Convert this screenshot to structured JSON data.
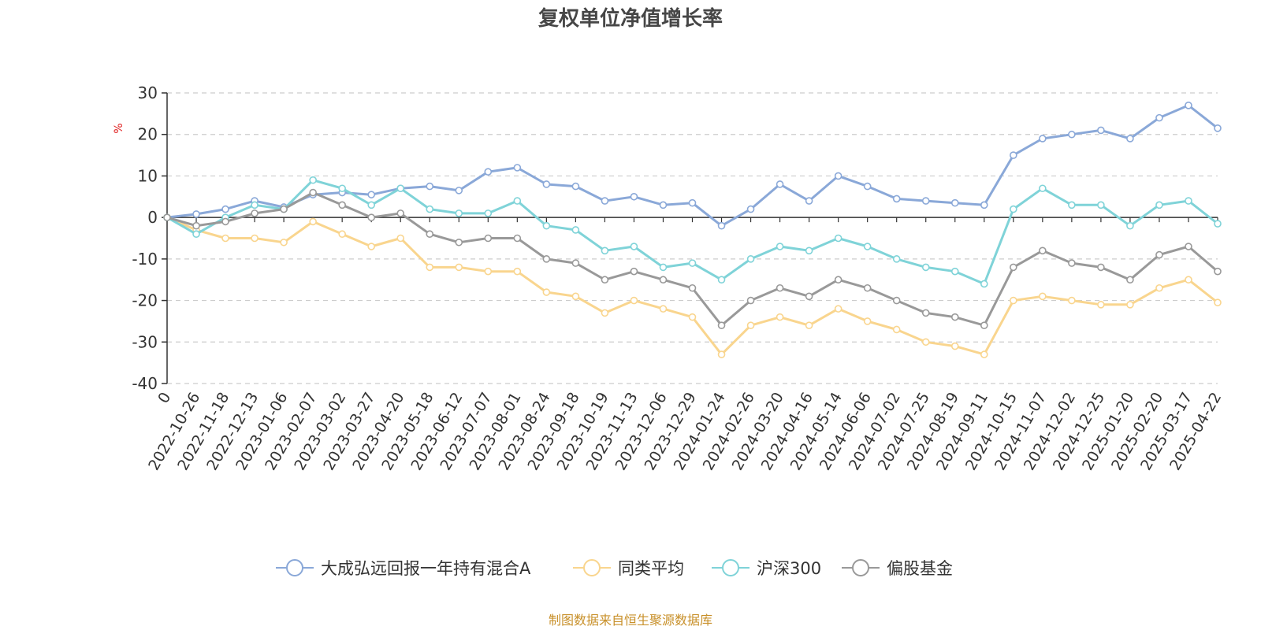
{
  "chart_data": {
    "type": "line",
    "title": "复权单位净值增长率",
    "ylabel": "%",
    "ylim": [
      -40,
      30
    ],
    "yticks": [
      30,
      20,
      10,
      0,
      -10,
      -20,
      -30,
      -40
    ],
    "grid": "horizontal dashed",
    "legend_position": "bottom",
    "x": [
      "0",
      "2022-10-26",
      "2022-11-18",
      "2022-12-13",
      "2023-01-06",
      "2023-02-07",
      "2023-03-02",
      "2023-03-27",
      "2023-04-20",
      "2023-05-18",
      "2023-06-12",
      "2023-07-07",
      "2023-08-01",
      "2023-08-24",
      "2023-09-18",
      "2023-10-19",
      "2023-11-13",
      "2023-12-06",
      "2023-12-29",
      "2024-01-24",
      "2024-02-26",
      "2024-03-20",
      "2024-04-16",
      "2024-05-14",
      "2024-06-06",
      "2024-07-02",
      "2024-07-25",
      "2024-08-19",
      "2024-09-11",
      "2024-10-15",
      "2024-11-07",
      "2024-12-02",
      "2024-12-25",
      "2025-01-20",
      "2025-02-20",
      "2025-03-17",
      "2025-04-22"
    ],
    "series": [
      {
        "name": "大成弘远回报一年持有混合A",
        "color": "#8aa8d8",
        "values": [
          0,
          0.8,
          2,
          4,
          2.5,
          5.5,
          6,
          5.5,
          7,
          7.5,
          6.5,
          11,
          12,
          8,
          7.5,
          4,
          5,
          3,
          3.5,
          -2,
          2,
          8,
          4,
          10,
          7.5,
          4.5,
          4,
          3.5,
          3,
          15,
          19,
          20,
          21,
          19,
          24,
          27,
          21.5
        ]
      },
      {
        "name": "同类平均",
        "color": "#f9d58e",
        "values": [
          0,
          -3,
          -5,
          -5,
          -6,
          -1,
          -4,
          -7,
          -5,
          -12,
          -12,
          -13,
          -13,
          -18,
          -19,
          -23,
          -20,
          -22,
          -24,
          -33,
          -26,
          -24,
          -26,
          -22,
          -25,
          -27,
          -30,
          -31,
          -33,
          -20,
          -19,
          -20,
          -21,
          -21,
          -17,
          -15,
          -20.5
        ]
      },
      {
        "name": "沪深300",
        "color": "#7fd3d8",
        "values": [
          0,
          -4,
          0,
          3,
          2,
          9,
          7,
          3,
          7,
          2,
          1,
          1,
          4,
          -2,
          -3,
          -8,
          -7,
          -12,
          -11,
          -15,
          -10,
          -7,
          -8,
          -5,
          -7,
          -10,
          -12,
          -13,
          -16,
          2,
          7,
          3,
          3,
          -2,
          3,
          4,
          -1.5
        ]
      },
      {
        "name": "偏股基金",
        "color": "#999999",
        "values": [
          0,
          -2,
          -1,
          1,
          2,
          6,
          3,
          0,
          1,
          -4,
          -6,
          -5,
          -5,
          -10,
          -11,
          -15,
          -13,
          -15,
          -17,
          -26,
          -20,
          -17,
          -19,
          -15,
          -17,
          -20,
          -23,
          -24,
          -26,
          -12,
          -8,
          -11,
          -12,
          -15,
          -9,
          -7,
          -13
        ]
      }
    ]
  },
  "legend_items": [
    "大成弘远回报一年持有混合A",
    "同类平均",
    "沪深300",
    "偏股基金"
  ],
  "source_note": "制图数据来自恒生聚源数据库"
}
